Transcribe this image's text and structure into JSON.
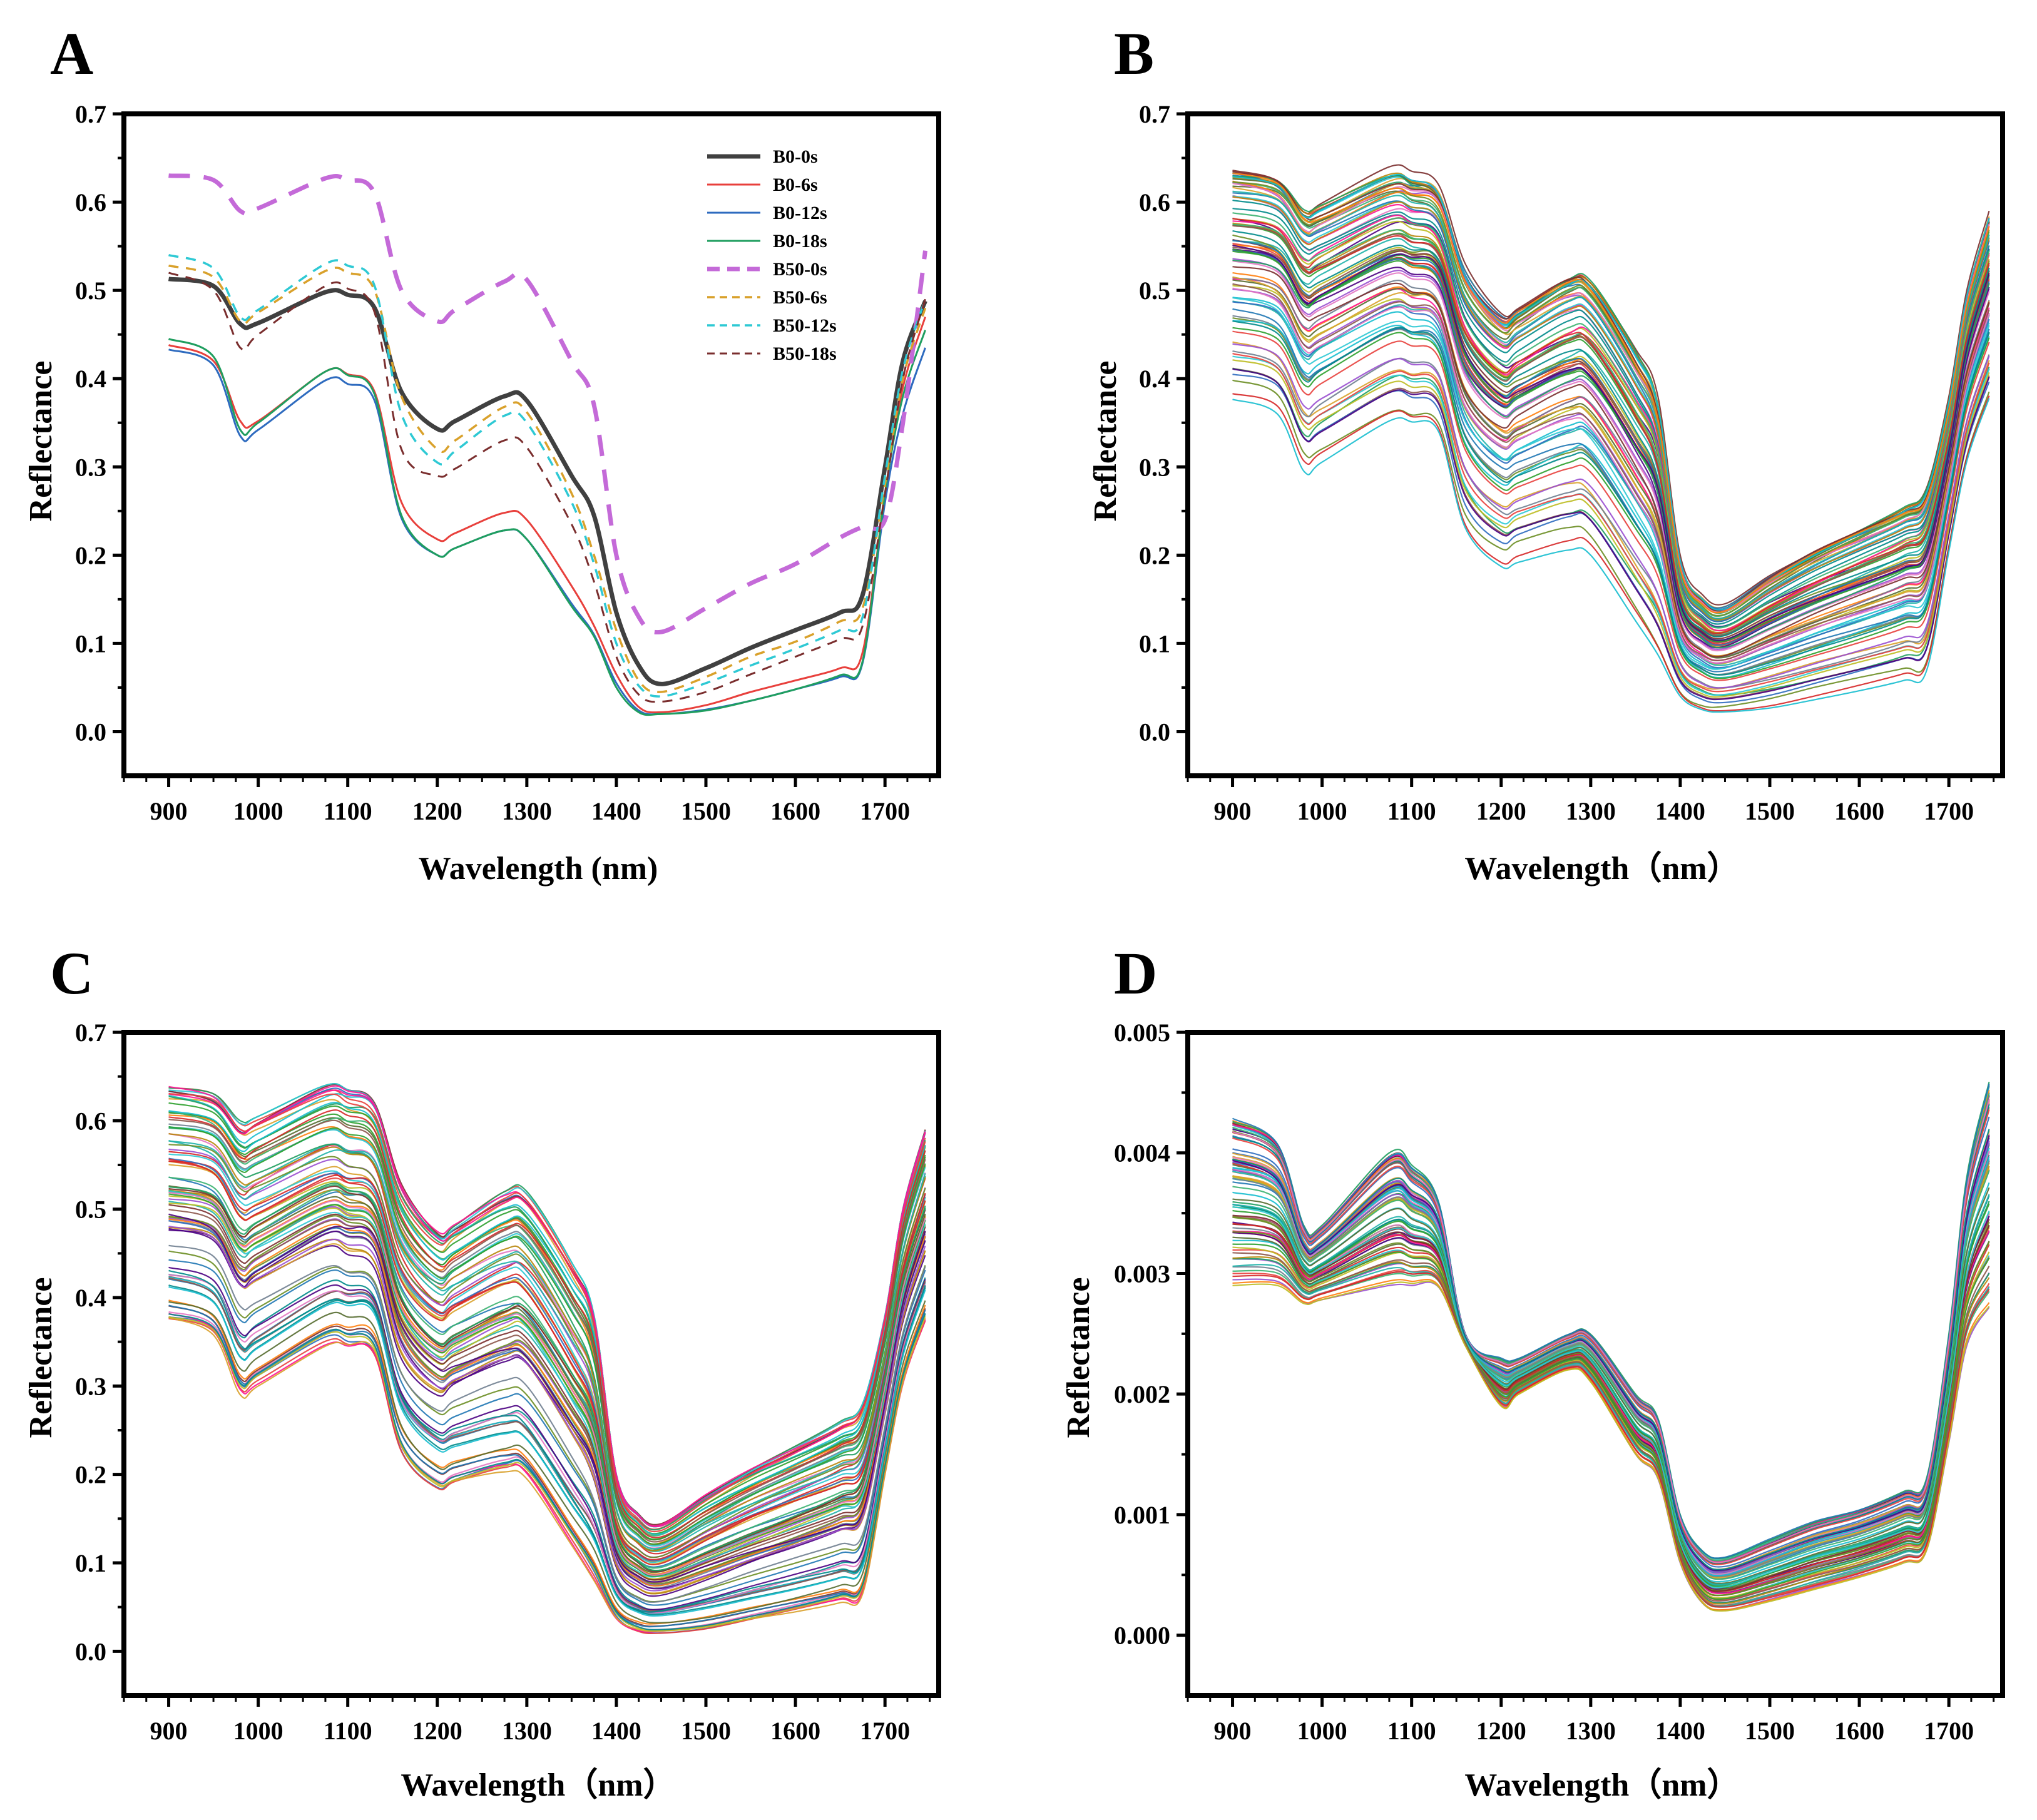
{
  "figure": {
    "panels": [
      {
        "id": "A",
        "letter": "A",
        "xlabel": "Wavelength (nm)",
        "ylabel": "Reflectance",
        "xlim": [
          850,
          1760
        ],
        "ylim": [
          -0.05,
          0.7
        ],
        "yticks": [
          0.0,
          0.1,
          0.2,
          0.3,
          0.4,
          0.5,
          0.6,
          0.7
        ],
        "ytick_labels": [
          "0.0",
          "0.1",
          "0.2",
          "0.3",
          "0.4",
          "0.5",
          "0.6",
          "0.7"
        ],
        "xticks": [
          900,
          1000,
          1100,
          1200,
          1300,
          1400,
          1500,
          1600,
          1700
        ],
        "xtick_labels": [
          "900",
          "1000",
          "1100",
          "1200",
          "1300",
          "1400",
          "1500",
          "1600",
          "1700"
        ]
      },
      {
        "id": "B",
        "letter": "B",
        "xlabel": "Wavelength（nm）",
        "ylabel": "Reflectance",
        "xlim": [
          850,
          1760
        ],
        "ylim": [
          -0.05,
          0.7
        ],
        "yticks": [
          0.0,
          0.1,
          0.2,
          0.3,
          0.4,
          0.5,
          0.6,
          0.7
        ],
        "ytick_labels": [
          "0.0",
          "0.1",
          "0.2",
          "0.3",
          "0.4",
          "0.5",
          "0.6",
          "0.7"
        ],
        "xticks": [
          900,
          1000,
          1100,
          1200,
          1300,
          1400,
          1500,
          1600,
          1700
        ],
        "xtick_labels": [
          "900",
          "1000",
          "1100",
          "1200",
          "1300",
          "1400",
          "1500",
          "1600",
          "1700"
        ]
      },
      {
        "id": "C",
        "letter": "C",
        "xlabel": "Wavelength（nm）",
        "ylabel": "Reflectance",
        "xlim": [
          850,
          1760
        ],
        "ylim": [
          -0.05,
          0.7
        ],
        "yticks": [
          0.0,
          0.1,
          0.2,
          0.3,
          0.4,
          0.5,
          0.6,
          0.7
        ],
        "ytick_labels": [
          "0.0",
          "0.1",
          "0.2",
          "0.3",
          "0.4",
          "0.5",
          "0.6",
          "0.7"
        ],
        "xticks": [
          900,
          1000,
          1100,
          1200,
          1300,
          1400,
          1500,
          1600,
          1700
        ],
        "xtick_labels": [
          "900",
          "1000",
          "1100",
          "1200",
          "1300",
          "1400",
          "1500",
          "1600",
          "1700"
        ]
      },
      {
        "id": "D",
        "letter": "D",
        "xlabel": "Wavelength（nm）",
        "ylabel": "Reflectance",
        "xlim": [
          850,
          1760
        ],
        "ylim": [
          -0.0005,
          0.005
        ],
        "yticks": [
          0.0,
          0.001,
          0.002,
          0.003,
          0.004,
          0.005
        ],
        "ytick_labels": [
          "0.000",
          "0.001",
          "0.002",
          "0.003",
          "0.004",
          "0.005"
        ],
        "xticks": [
          900,
          1000,
          1100,
          1200,
          1300,
          1400,
          1500,
          1600,
          1700
        ],
        "xtick_labels": [
          "900",
          "1000",
          "1100",
          "1200",
          "1300",
          "1400",
          "1500",
          "1600",
          "1700"
        ]
      }
    ]
  },
  "chart_data": [
    {
      "panel": "A",
      "type": "line",
      "title": "",
      "xlabel": "Wavelength (nm)",
      "ylabel": "Reflectance",
      "xlim": [
        850,
        1760
      ],
      "ylim": [
        -0.05,
        0.7
      ],
      "legend": "top-right",
      "x": [
        900,
        950,
        980,
        1000,
        1075,
        1100,
        1130,
        1160,
        1200,
        1220,
        1275,
        1300,
        1350,
        1375,
        1400,
        1425,
        1450,
        1500,
        1550,
        1600,
        1650,
        1675,
        1700,
        1720,
        1745
      ],
      "series": [
        {
          "name": "B0-0s",
          "color": "#404040",
          "dash": "solid",
          "width": 7,
          "values": [
            0.513,
            0.505,
            0.462,
            0.463,
            0.498,
            0.495,
            0.48,
            0.385,
            0.343,
            0.352,
            0.38,
            0.375,
            0.29,
            0.245,
            0.135,
            0.075,
            0.054,
            0.072,
            0.095,
            0.115,
            0.135,
            0.155,
            0.3,
            0.42,
            0.488
          ]
        },
        {
          "name": "B0-6s",
          "color": "#e8403c",
          "dash": "solid",
          "width": 3,
          "values": [
            0.438,
            0.42,
            0.352,
            0.352,
            0.408,
            0.405,
            0.385,
            0.26,
            0.218,
            0.225,
            0.248,
            0.24,
            0.165,
            0.12,
            0.065,
            0.028,
            0.022,
            0.03,
            0.045,
            0.058,
            0.072,
            0.09,
            0.27,
            0.39,
            0.47
          ]
        },
        {
          "name": "B0-12s",
          "color": "#2e6bbf",
          "dash": "solid",
          "width": 3,
          "values": [
            0.433,
            0.415,
            0.335,
            0.342,
            0.398,
            0.394,
            0.375,
            0.242,
            0.2,
            0.208,
            0.228,
            0.218,
            0.145,
            0.11,
            0.055,
            0.024,
            0.02,
            0.025,
            0.035,
            0.048,
            0.062,
            0.078,
            0.26,
            0.36,
            0.435
          ]
        },
        {
          "name": "B0-18s",
          "color": "#1f9e5f",
          "dash": "solid",
          "width": 3,
          "values": [
            0.445,
            0.425,
            0.342,
            0.35,
            0.408,
            0.404,
            0.382,
            0.245,
            0.2,
            0.208,
            0.228,
            0.218,
            0.142,
            0.108,
            0.05,
            0.022,
            0.02,
            0.024,
            0.035,
            0.048,
            0.064,
            0.08,
            0.27,
            0.38,
            0.455
          ]
        },
        {
          "name": "B50-0s",
          "color": "#c46ad8",
          "dash": "long",
          "width": 7,
          "values": [
            0.63,
            0.625,
            0.59,
            0.593,
            0.627,
            0.625,
            0.61,
            0.5,
            0.465,
            0.478,
            0.51,
            0.512,
            0.42,
            0.37,
            0.2,
            0.13,
            0.113,
            0.14,
            0.168,
            0.19,
            0.22,
            0.232,
            0.24,
            0.35,
            0.545
          ]
        },
        {
          "name": "B50-6s",
          "color": "#d9a12b",
          "dash": "short",
          "width": 3.5,
          "values": [
            0.528,
            0.515,
            0.465,
            0.475,
            0.522,
            0.52,
            0.5,
            0.38,
            0.32,
            0.33,
            0.368,
            0.362,
            0.27,
            0.2,
            0.115,
            0.058,
            0.045,
            0.062,
            0.085,
            0.102,
            0.125,
            0.14,
            0.28,
            0.4,
            0.48
          ]
        },
        {
          "name": "B50-12s",
          "color": "#2ec9d4",
          "dash": "short",
          "width": 3.5,
          "values": [
            0.54,
            0.525,
            0.47,
            0.478,
            0.53,
            0.528,
            0.505,
            0.36,
            0.305,
            0.318,
            0.358,
            0.35,
            0.26,
            0.19,
            0.1,
            0.052,
            0.04,
            0.055,
            0.075,
            0.094,
            0.115,
            0.13,
            0.29,
            0.41,
            0.49
          ]
        },
        {
          "name": "B50-18s",
          "color": "#7a2e2e",
          "dash": "short",
          "width": 3,
          "values": [
            0.52,
            0.5,
            0.435,
            0.45,
            0.505,
            0.502,
            0.475,
            0.32,
            0.29,
            0.298,
            0.33,
            0.322,
            0.235,
            0.17,
            0.085,
            0.042,
            0.034,
            0.045,
            0.065,
            0.085,
            0.105,
            0.12,
            0.27,
            0.4,
            0.49
          ]
        }
      ]
    },
    {
      "panel": "B",
      "type": "line",
      "title": "",
      "xlabel": "Wavelength（nm）",
      "ylabel": "Reflectance",
      "xlim": [
        850,
        1760
      ],
      "ylim": [
        -0.05,
        0.7
      ],
      "series_count": 90,
      "x": [
        900,
        950,
        980,
        1000,
        1075,
        1100,
        1130,
        1160,
        1200,
        1220,
        1275,
        1300,
        1350,
        1375,
        1400,
        1425,
        1450,
        1500,
        1550,
        1600,
        1650,
        1675,
        1700,
        1720,
        1745
      ],
      "envelope_upper": [
        0.645,
        0.635,
        0.6,
        0.605,
        0.64,
        0.635,
        0.62,
        0.53,
        0.48,
        0.49,
        0.525,
        0.52,
        0.44,
        0.38,
        0.2,
        0.155,
        0.145,
        0.18,
        0.21,
        0.235,
        0.26,
        0.28,
        0.38,
        0.5,
        0.59
      ],
      "envelope_lower": [
        0.37,
        0.355,
        0.29,
        0.3,
        0.345,
        0.342,
        0.33,
        0.22,
        0.178,
        0.185,
        0.2,
        0.195,
        0.12,
        0.08,
        0.035,
        0.02,
        0.018,
        0.022,
        0.032,
        0.043,
        0.055,
        0.065,
        0.2,
        0.3,
        0.37
      ]
    },
    {
      "panel": "C",
      "type": "line",
      "title": "",
      "xlabel": "Wavelength（nm）",
      "ylabel": "Reflectance",
      "xlim": [
        850,
        1760
      ],
      "ylim": [
        -0.05,
        0.7
      ],
      "series_count": 90,
      "x": [
        900,
        950,
        980,
        1000,
        1075,
        1100,
        1130,
        1160,
        1200,
        1220,
        1275,
        1300,
        1350,
        1375,
        1400,
        1425,
        1450,
        1500,
        1550,
        1600,
        1650,
        1675,
        1700,
        1720,
        1745
      ],
      "envelope_upper": [
        0.645,
        0.635,
        0.6,
        0.605,
        0.64,
        0.635,
        0.62,
        0.53,
        0.48,
        0.49,
        0.525,
        0.52,
        0.44,
        0.38,
        0.2,
        0.155,
        0.145,
        0.18,
        0.21,
        0.235,
        0.26,
        0.28,
        0.38,
        0.5,
        0.59
      ],
      "envelope_lower": [
        0.37,
        0.355,
        0.29,
        0.3,
        0.345,
        0.342,
        0.33,
        0.22,
        0.178,
        0.185,
        0.2,
        0.195,
        0.12,
        0.08,
        0.035,
        0.02,
        0.018,
        0.022,
        0.032,
        0.043,
        0.055,
        0.065,
        0.2,
        0.3,
        0.37
      ]
    },
    {
      "panel": "D",
      "type": "line",
      "title": "",
      "xlabel": "Wavelength（nm）",
      "ylabel": "Reflectance",
      "xlim": [
        850,
        1760
      ],
      "ylim": [
        -0.0005,
        0.005
      ],
      "series_count": 90,
      "x": [
        900,
        950,
        980,
        1000,
        1075,
        1100,
        1130,
        1160,
        1200,
        1220,
        1275,
        1300,
        1350,
        1375,
        1400,
        1425,
        1450,
        1500,
        1550,
        1600,
        1650,
        1675,
        1700,
        1720,
        1745
      ],
      "envelope_upper": [
        0.0043,
        0.0041,
        0.0034,
        0.0034,
        0.004,
        0.0039,
        0.0036,
        0.0025,
        0.0023,
        0.0023,
        0.0025,
        0.0025,
        0.002,
        0.0018,
        0.001,
        0.0007,
        0.00065,
        0.0008,
        0.00095,
        0.00105,
        0.0012,
        0.0013,
        0.0025,
        0.0038,
        0.0046
      ],
      "envelope_lower": [
        0.0029,
        0.0029,
        0.00275,
        0.00278,
        0.0029,
        0.0029,
        0.00288,
        0.0024,
        0.0019,
        0.002,
        0.0022,
        0.0021,
        0.0015,
        0.0013,
        0.0006,
        0.00026,
        0.0002,
        0.00028,
        0.00038,
        0.00048,
        0.0006,
        0.0007,
        0.0016,
        0.0024,
        0.0027
      ]
    }
  ]
}
